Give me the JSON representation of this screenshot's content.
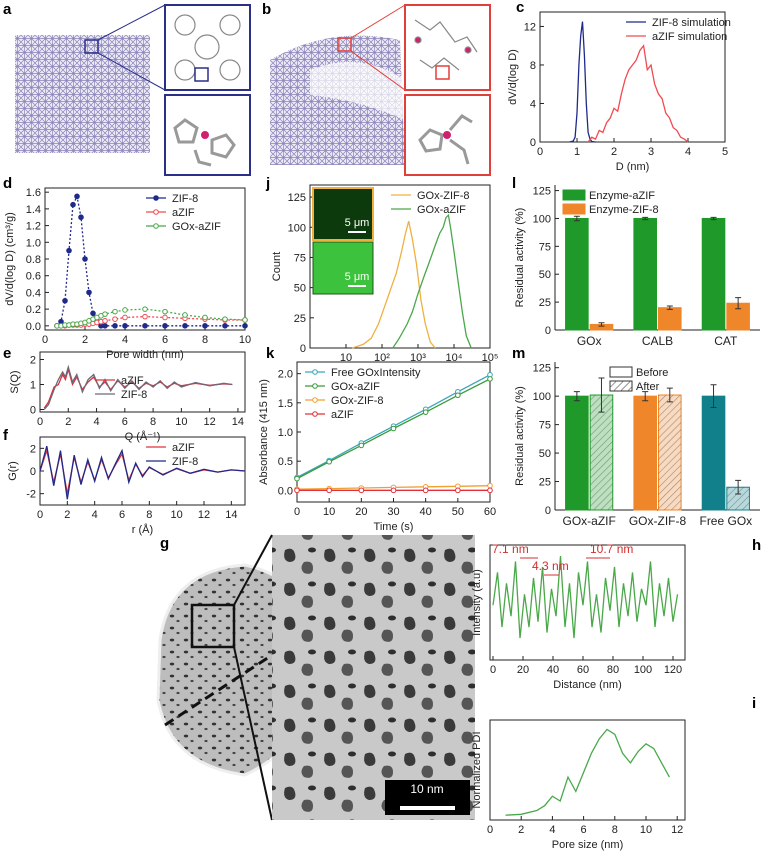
{
  "image_panels": [
    {
      "panel": "a"
    },
    {
      "panel": "b"
    },
    {
      "panel": "g",
      "scale_bar": "10 nm"
    }
  ],
  "chart_data": [
    {
      "type": "line",
      "panel": "c",
      "xlabel": "D (nm)",
      "ylabel": "dV/d(log D)",
      "xlim": [
        0,
        5
      ],
      "xticks": [
        0,
        1,
        2,
        3,
        4,
        5
      ],
      "ylim": [
        0,
        13.5
      ],
      "yticks": [
        0,
        4,
        8,
        12
      ],
      "legend": "upper right",
      "frame": true,
      "series": [
        {
          "name": "ZIF-8 simulation",
          "color": "#1f2a8a",
          "x": [
            0.8,
            0.9,
            0.95,
            1.0,
            1.05,
            1.1,
            1.15,
            1.2,
            1.25,
            1.3,
            1.35,
            1.4,
            1.5
          ],
          "values": [
            0,
            0.1,
            0.5,
            3,
            8,
            11,
            12.5,
            9,
            4,
            1,
            0.3,
            0.05,
            0
          ]
        },
        {
          "name": "aZIF simulation",
          "color": "#f04a50",
          "x": [
            1.3,
            1.4,
            1.5,
            1.6,
            1.7,
            1.8,
            1.9,
            2.0,
            2.1,
            2.2,
            2.3,
            2.4,
            2.5,
            2.6,
            2.7,
            2.8,
            2.9,
            3.0,
            3.1,
            3.2,
            3.3,
            3.4,
            3.5,
            3.6,
            3.7,
            3.8,
            3.9,
            4.0
          ],
          "values": [
            0,
            0.5,
            0.3,
            1.2,
            1.0,
            2.0,
            2.5,
            3.5,
            3.2,
            5.0,
            6.5,
            7.5,
            8.0,
            8.5,
            9.5,
            10.0,
            7.5,
            8.0,
            6.0,
            5.0,
            4.5,
            3.0,
            2.5,
            1.5,
            1.2,
            0.5,
            0.3,
            0
          ]
        }
      ]
    },
    {
      "type": "line",
      "panel": "d",
      "xlabel": "Pore width (nm)",
      "ylabel": "dV/d(log D) (cm³/g)",
      "xlim": [
        0,
        10
      ],
      "xticks": [
        0,
        2,
        4,
        6,
        8,
        10
      ],
      "ylim": [
        -0.05,
        1.65
      ],
      "yticks": [
        {
          "value": 0,
          "label": "0.0"
        },
        0.2,
        0.4,
        0.6,
        0.8,
        {
          "value": 1,
          "label": "1.0"
        },
        1.2,
        1.4,
        1.6
      ],
      "legend": "upper right",
      "frame": true,
      "x": [
        0.6,
        0.8,
        1.0,
        1.2,
        1.4,
        1.6,
        1.8,
        2.0,
        2.2,
        2.4,
        2.6,
        2.8,
        3.0,
        3.5,
        4,
        5,
        6,
        7,
        8,
        9,
        10
      ],
      "series": [
        {
          "name": "ZIF-8",
          "color": "#1f2a8a",
          "marker": "dot",
          "dash": true,
          "values": [
            0.0,
            0.05,
            0.3,
            0.9,
            1.45,
            1.55,
            1.3,
            0.8,
            0.4,
            0.15,
            0.05,
            0.0,
            0.0,
            0,
            0,
            0,
            0,
            0,
            0,
            0,
            0
          ]
        },
        {
          "name": "aZIF",
          "color": "#f04a50",
          "marker": "open",
          "dash": true,
          "values": [
            0.0,
            0.0,
            0.0,
            0.01,
            0.01,
            0.01,
            0.01,
            0.02,
            0.02,
            0.03,
            0.04,
            0.05,
            0.06,
            0.08,
            0.1,
            0.11,
            0.1,
            0.09,
            0.08,
            0.07,
            0.07
          ]
        },
        {
          "name": "GOx-aZIF",
          "color": "#4aa84a",
          "marker": "open",
          "dash": true,
          "values": [
            0,
            0,
            0.01,
            0.01,
            0.02,
            0.02,
            0.03,
            0.04,
            0.06,
            0.08,
            0.1,
            0.12,
            0.14,
            0.17,
            0.19,
            0.2,
            0.17,
            0.13,
            0.1,
            0.08,
            0.07
          ]
        }
      ]
    },
    {
      "type": "line",
      "panel": "j",
      "xlabel": "Intensity",
      "ylabel": "Count",
      "xscale": "log",
      "xlim": [
        1,
        100000
      ],
      "xticks": [
        10,
        {
          "value": 100,
          "label": "10²"
        },
        {
          "value": 1000,
          "label": "10³"
        },
        {
          "value": 10000,
          "label": "10⁴"
        },
        {
          "value": 100000,
          "label": "10⁵"
        }
      ],
      "ylim": [
        0,
        135
      ],
      "yticks": [
        0,
        25,
        50,
        75,
        100,
        125
      ],
      "legend": "upper right",
      "frame": true,
      "inset_labels": [
        "5 μm",
        "5 μm"
      ],
      "series": [
        {
          "name": "GOx-ZIF-8",
          "color": "#f0b040",
          "x": [
            15,
            30,
            50,
            80,
            120,
            180,
            250,
            350,
            450,
            550,
            700,
            900,
            1200,
            1600,
            2200,
            3000
          ],
          "values": [
            0,
            3,
            8,
            20,
            35,
            50,
            62,
            80,
            95,
            105,
            90,
            70,
            40,
            20,
            5,
            0
          ]
        },
        {
          "name": "GOx-aZIF",
          "color": "#4aa84a",
          "x": [
            200,
            300,
            500,
            700,
            1000,
            1500,
            2000,
            3000,
            4000,
            5000,
            6000,
            7000,
            8000,
            10000,
            13000,
            17000,
            22000,
            30000
          ],
          "values": [
            0,
            8,
            20,
            30,
            45,
            60,
            70,
            85,
            95,
            100,
            108,
            110,
            100,
            80,
            55,
            30,
            10,
            0
          ]
        }
      ]
    },
    {
      "type": "bar",
      "panel": "l",
      "ylabel": "Residual activity (%)",
      "categories": [
        "GOx",
        "CALB",
        "CAT"
      ],
      "ylim": [
        0,
        130
      ],
      "yticks": [
        0,
        25,
        50,
        75,
        100,
        125
      ],
      "legend": "upper left",
      "series": [
        {
          "name": "Enzyme-aZIF",
          "color": "#1f9a2a",
          "values": [
            100,
            100,
            100
          ],
          "errors": [
            2,
            1,
            1
          ]
        },
        {
          "name": "Enzyme-ZIF-8",
          "color": "#f0862a",
          "values": [
            5,
            20,
            24
          ],
          "errors": [
            1.5,
            1.5,
            5
          ]
        }
      ]
    },
    {
      "type": "line",
      "panel": "e",
      "xlabel": "Q (Å⁻¹)",
      "ylabel": "S(Q)",
      "xlim": [
        0,
        14.5
      ],
      "xticks": [
        0,
        2,
        4,
        6,
        8,
        10,
        12,
        14
      ],
      "ylim": [
        -0.1,
        2.3
      ],
      "yticks": [
        0,
        1,
        2
      ],
      "legend": "lower center",
      "frame": true,
      "x": [
        0.3,
        0.6,
        1,
        1.3,
        1.6,
        1.8,
        2,
        2.3,
        2.6,
        3,
        3.4,
        3.8,
        4.2,
        4.6,
        5,
        5.5,
        6,
        6.5,
        7,
        7.5,
        8,
        8.5,
        9,
        9.5,
        10,
        11,
        12,
        13,
        13.6
      ],
      "series": [
        {
          "name": "aZIF",
          "color": "#e0303a",
          "values": [
            0.05,
            0.3,
            0.9,
            1.0,
            1.4,
            1.2,
            1.6,
            1.0,
            1.3,
            0.8,
            1.1,
            1.3,
            0.9,
            1.1,
            0.8,
            1.15,
            0.9,
            1.1,
            0.85,
            1.05,
            0.95,
            1.1,
            0.9,
            1.05,
            0.95,
            1.05,
            0.97,
            1.03,
            1.0
          ]
        },
        {
          "name": "ZIF-8",
          "color": "#6a6a7a",
          "values": [
            0.0,
            0.2,
            0.8,
            1.2,
            1.5,
            1.3,
            1.7,
            1.1,
            1.4,
            0.7,
            1.2,
            1.4,
            0.85,
            1.2,
            0.75,
            1.2,
            0.85,
            1.15,
            0.8,
            1.1,
            0.9,
            1.15,
            0.85,
            1.1,
            0.9,
            1.08,
            0.95,
            1.05,
            1.0
          ]
        }
      ]
    },
    {
      "type": "line",
      "panel": "f",
      "xlabel": "r (Å)",
      "ylabel": "G(r)",
      "xlim": [
        0,
        15
      ],
      "xticks": [
        0,
        2,
        4,
        6,
        8,
        10,
        12,
        14
      ],
      "ylim": [
        -3,
        3
      ],
      "yticks": [
        -2,
        0,
        2
      ],
      "legend": "upper right",
      "frame": true,
      "x": [
        0,
        0.5,
        1,
        1.5,
        2,
        2.5,
        3,
        3.5,
        4,
        4.5,
        5,
        5.5,
        6,
        6.5,
        7,
        7.5,
        8,
        9,
        10,
        11,
        12,
        13,
        14,
        15
      ],
      "series": [
        {
          "name": "aZIF",
          "color": "#e0303a",
          "values": [
            0,
            1.8,
            -1,
            1.5,
            -2,
            1.2,
            -1,
            0.8,
            -0.8,
            1,
            -0.6,
            0.5,
            1.5,
            -0.8,
            0.6,
            -0.4,
            0.3,
            -0.3,
            0.2,
            -0.2,
            0.1,
            -0.1,
            0.1,
            0
          ]
        },
        {
          "name": "ZIF-8",
          "color": "#1f2a8a",
          "values": [
            0,
            2.2,
            -1.3,
            1.8,
            -2.5,
            1.4,
            -1.2,
            1,
            -0.9,
            1.2,
            -0.7,
            0.6,
            1.8,
            -1,
            0.7,
            -0.5,
            0.35,
            -0.35,
            0.25,
            -0.2,
            0.15,
            -0.1,
            0.1,
            0
          ]
        }
      ]
    },
    {
      "type": "line",
      "panel": "k",
      "xlabel": "Time (s)",
      "ylabel": "Absorbance (415 nm)",
      "xlim": [
        0,
        60
      ],
      "xticks": [
        0,
        10,
        20,
        30,
        40,
        50,
        60
      ],
      "ylim": [
        -0.2,
        2.2
      ],
      "yticks": [
        {
          "value": 0,
          "label": "0.0"
        },
        0.5,
        {
          "value": 1,
          "label": "1.0"
        },
        1.5,
        {
          "value": 2,
          "label": "2.0"
        }
      ],
      "legend": "upper left",
      "frame": true,
      "x": [
        0,
        10,
        20,
        30,
        40,
        50,
        60
      ],
      "series": [
        {
          "name": "Free GOx",
          "color": "#3aa6b9",
          "marker": "open",
          "values": [
            0.22,
            0.51,
            0.81,
            1.1,
            1.39,
            1.69,
            1.98
          ]
        },
        {
          "name": "GOx-aZIF",
          "color": "#3a9a3a",
          "marker": "open",
          "values": [
            0.2,
            0.49,
            0.77,
            1.06,
            1.34,
            1.63,
            1.91
          ]
        },
        {
          "name": "GOx-ZIF-8",
          "color": "#f0a030",
          "marker": "open",
          "values": [
            0.02,
            0.03,
            0.04,
            0.05,
            0.06,
            0.07,
            0.08
          ]
        },
        {
          "name": "aZIF",
          "color": "#e0303a",
          "marker": "open",
          "values": [
            0,
            0,
            0,
            0,
            0,
            0,
            0
          ]
        }
      ]
    },
    {
      "type": "bar",
      "panel": "m",
      "ylabel": "Residual activity (%)",
      "categories": [
        "GOx-aZIF",
        "GOx-ZIF-8",
        "Free GOx"
      ],
      "ylim": [
        0,
        130
      ],
      "yticks": [
        0,
        25,
        50,
        75,
        100,
        125
      ],
      "legend": "upper center",
      "series": [
        {
          "name": "Before",
          "colors": [
            "#1f9a2a",
            "#f0862a",
            "#12808a"
          ],
          "values": [
            100,
            100,
            100
          ],
          "errors": [
            4,
            4,
            10
          ]
        },
        {
          "name": "After",
          "colors": [
            "#1f9a2a",
            "#f0862a",
            "#12808a"
          ],
          "hatch": true,
          "values": [
            101,
            101,
            20
          ],
          "errors": [
            15,
            6,
            6
          ]
        }
      ]
    },
    {
      "type": "line",
      "panel": "h",
      "xlabel": "Distance (nm)",
      "ylabel": "Intensity (a.u)",
      "xlim": [
        -2,
        128
      ],
      "xticks": [
        0,
        20,
        40,
        60,
        80,
        100,
        120
      ],
      "ylim": [
        0,
        1.05
      ],
      "frame": true,
      "annotations": [
        "7.1 nm",
        "4.3 nm",
        "10.7 nm"
      ],
      "x": [
        0,
        3,
        6,
        9,
        12,
        15,
        18,
        21,
        24,
        27,
        30,
        33,
        36,
        39,
        42,
        45,
        48,
        51,
        54,
        57,
        60,
        63,
        66,
        69,
        72,
        75,
        78,
        81,
        84,
        87,
        90,
        93,
        96,
        99,
        102,
        105,
        108,
        111,
        114,
        117,
        120,
        123
      ],
      "series": [
        {
          "color": "#4aa84a",
          "values": [
            0.5,
            0.8,
            0.3,
            0.7,
            0.4,
            0.9,
            0.2,
            0.6,
            0.3,
            0.75,
            0.35,
            0.85,
            0.25,
            0.65,
            0.4,
            0.95,
            0.3,
            0.7,
            0.2,
            0.8,
            0.5,
            0.9,
            0.3,
            0.6,
            0.25,
            0.75,
            0.45,
            0.85,
            0.3,
            0.7,
            0.4,
            0.8,
            0.35,
            0.65,
            0.5,
            0.9,
            0.3,
            0.7,
            0.4,
            0.75,
            0.35,
            0.6
          ]
        }
      ]
    },
    {
      "type": "line",
      "panel": "i",
      "xlabel": "Pore size (nm)",
      "ylabel": "Normalized PDI",
      "xlim": [
        0,
        12.5
      ],
      "xticks": [
        0,
        2,
        4,
        6,
        8,
        10,
        12
      ],
      "ylim": [
        0,
        1.05
      ],
      "frame": true,
      "x": [
        1,
        2,
        3,
        3.5,
        4,
        4.5,
        5,
        5.5,
        6,
        6.5,
        7,
        7.5,
        8,
        8.5,
        9,
        9.5,
        10,
        10.5,
        11,
        11.5
      ],
      "series": [
        {
          "color": "#4aa84a",
          "values": [
            0.05,
            0.06,
            0.1,
            0.15,
            0.25,
            0.2,
            0.45,
            0.3,
            0.5,
            0.7,
            0.85,
            0.95,
            0.9,
            0.7,
            0.6,
            0.72,
            0.8,
            0.75,
            0.6,
            0.45
          ]
        }
      ]
    }
  ]
}
